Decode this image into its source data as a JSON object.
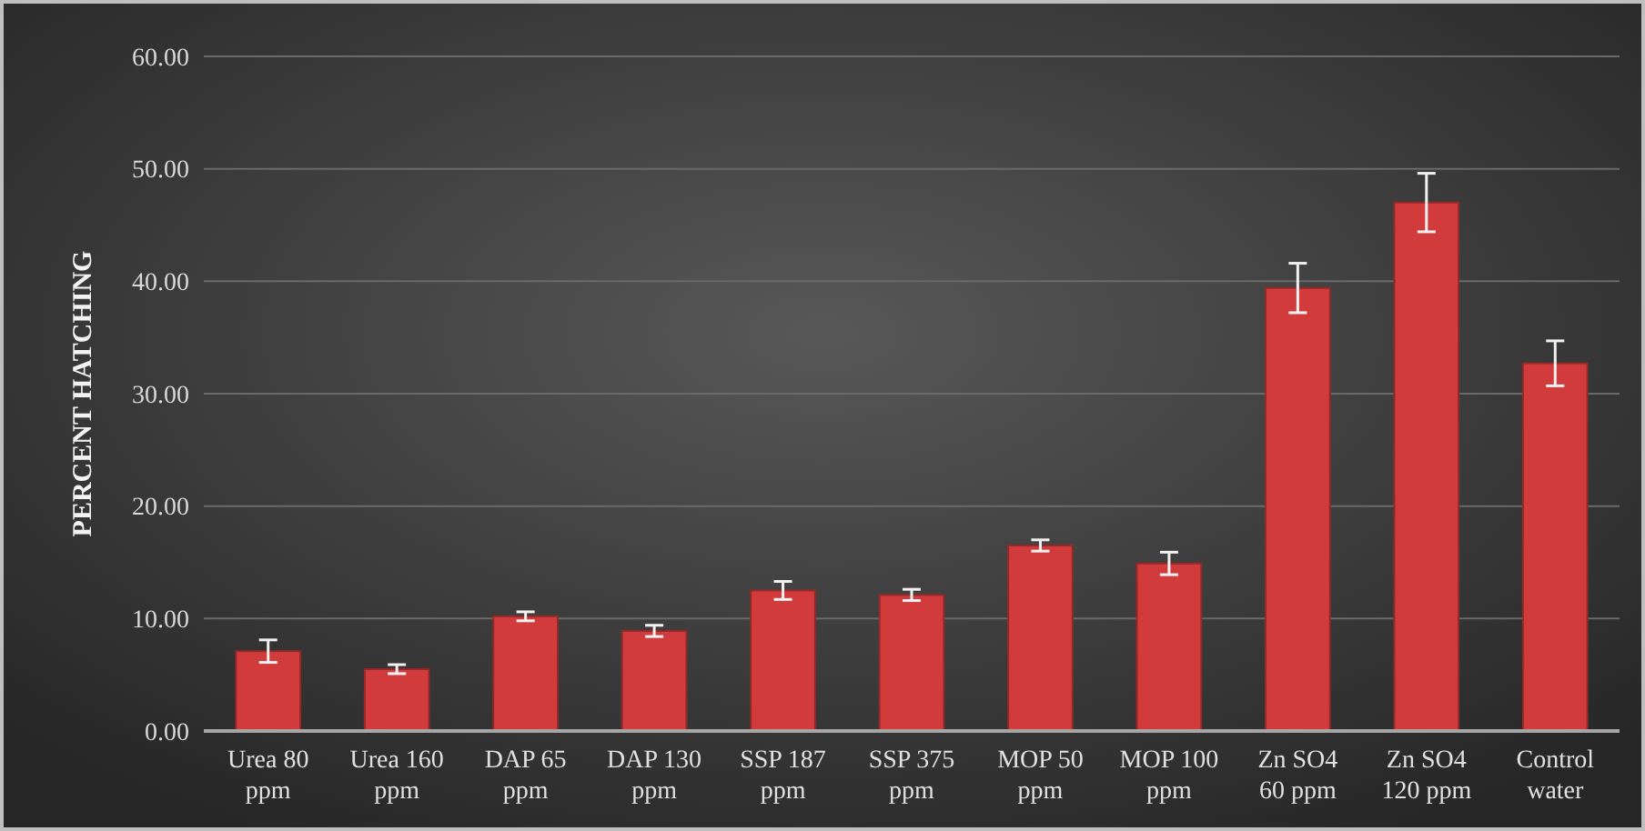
{
  "chart_data": {
    "type": "bar",
    "ylabel": "PERCENT HATCHING",
    "categories": [
      "Urea 80 ppm",
      "Urea 160 ppm",
      "DAP 65 ppm",
      "DAP 130 ppm",
      "SSP 187 ppm",
      "SSP 375 ppm",
      "MOP 50 ppm",
      "MOP 100 ppm",
      "Zn SO4 60 ppm",
      "Zn SO4 120 ppm",
      "Control water"
    ],
    "values": [
      7.1,
      5.5,
      10.2,
      8.9,
      12.5,
      12.1,
      16.5,
      14.9,
      39.4,
      47.0,
      32.7
    ],
    "errors": [
      1.0,
      0.4,
      0.4,
      0.5,
      0.8,
      0.5,
      0.5,
      1.0,
      2.2,
      2.6,
      2.0
    ],
    "color": "#d23b3b",
    "ylim": [
      0,
      60
    ],
    "yticks": [
      {
        "value": 0,
        "label": "0.00"
      },
      {
        "value": 10,
        "label": "10.00"
      },
      {
        "value": 20,
        "label": "20.00"
      },
      {
        "value": 30,
        "label": "30.00"
      },
      {
        "value": 40,
        "label": "40.00"
      },
      {
        "value": 50,
        "label": "50.00"
      },
      {
        "value": 60,
        "label": "60.00"
      }
    ],
    "grid": "y"
  }
}
